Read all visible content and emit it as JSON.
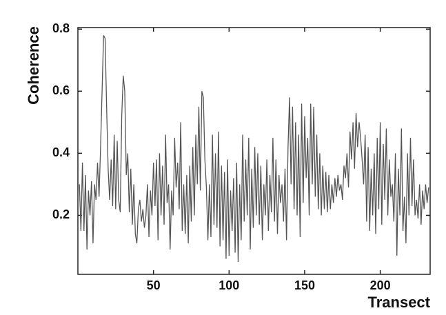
{
  "chart_data": {
    "type": "line",
    "x_label": "Transect",
    "y_label": "Coherence",
    "xlim": [
      0,
      233
    ],
    "ylim": [
      0.01,
      0.805
    ],
    "xticks": [
      50,
      100,
      150,
      200
    ],
    "yticks": [
      0.2,
      0.4,
      0.6,
      0.8
    ],
    "color": "#555555",
    "x": [
      1,
      2,
      3,
      4,
      5,
      6,
      7,
      8,
      9,
      10,
      11,
      12,
      13,
      14,
      15,
      16,
      17,
      18,
      19,
      20,
      21,
      22,
      23,
      24,
      25,
      26,
      27,
      28,
      29,
      30,
      31,
      32,
      33,
      34,
      35,
      36,
      37,
      38,
      39,
      40,
      41,
      42,
      43,
      44,
      45,
      46,
      47,
      48,
      49,
      50,
      51,
      52,
      53,
      54,
      55,
      56,
      57,
      58,
      59,
      60,
      61,
      62,
      63,
      64,
      65,
      66,
      67,
      68,
      69,
      70,
      71,
      72,
      73,
      74,
      75,
      76,
      77,
      78,
      79,
      80,
      81,
      82,
      83,
      84,
      85,
      86,
      87,
      88,
      89,
      90,
      91,
      92,
      93,
      94,
      95,
      96,
      97,
      98,
      99,
      100,
      101,
      102,
      103,
      104,
      105,
      106,
      107,
      108,
      109,
      110,
      111,
      112,
      113,
      114,
      115,
      116,
      117,
      118,
      119,
      120,
      121,
      122,
      123,
      124,
      125,
      126,
      127,
      128,
      129,
      130,
      131,
      132,
      133,
      134,
      135,
      136,
      137,
      138,
      139,
      140,
      141,
      142,
      143,
      144,
      145,
      146,
      147,
      148,
      149,
      150,
      151,
      152,
      153,
      154,
      155,
      156,
      157,
      158,
      159,
      160,
      161,
      162,
      163,
      164,
      165,
      166,
      167,
      168,
      169,
      170,
      171,
      172,
      173,
      174,
      175,
      176,
      177,
      178,
      179,
      180,
      181,
      182,
      183,
      184,
      185,
      186,
      187,
      188,
      189,
      190,
      191,
      192,
      193,
      194,
      195,
      196,
      197,
      198,
      199,
      200,
      201,
      202,
      203,
      204,
      205,
      206,
      207,
      208,
      209,
      210,
      211,
      212,
      213,
      214,
      215,
      216,
      217,
      218,
      219,
      220,
      221,
      222,
      223,
      224,
      225,
      226,
      227,
      228,
      229,
      230,
      231,
      232
    ],
    "values": [
      0.3,
      0.15,
      0.37,
      0.15,
      0.33,
      0.09,
      0.28,
      0.2,
      0.31,
      0.11,
      0.3,
      0.25,
      0.37,
      0.26,
      0.42,
      0.6,
      0.78,
      0.77,
      0.55,
      0.35,
      0.25,
      0.38,
      0.23,
      0.46,
      0.22,
      0.44,
      0.25,
      0.21,
      0.52,
      0.65,
      0.6,
      0.33,
      0.4,
      0.21,
      0.35,
      0.17,
      0.3,
      0.14,
      0.11,
      0.22,
      0.25,
      0.18,
      0.22,
      0.16,
      0.2,
      0.3,
      0.13,
      0.28,
      0.2,
      0.37,
      0.23,
      0.38,
      0.12,
      0.4,
      0.2,
      0.36,
      0.17,
      0.46,
      0.24,
      0.3,
      0.09,
      0.28,
      0.2,
      0.45,
      0.29,
      0.37,
      0.22,
      0.5,
      0.15,
      0.3,
      0.14,
      0.33,
      0.11,
      0.36,
      0.18,
      0.42,
      0.2,
      0.46,
      0.3,
      0.55,
      0.28,
      0.6,
      0.58,
      0.38,
      0.29,
      0.12,
      0.3,
      0.13,
      0.46,
      0.17,
      0.4,
      0.16,
      0.47,
      0.1,
      0.36,
      0.12,
      0.34,
      0.06,
      0.38,
      0.07,
      0.28,
      0.15,
      0.32,
      0.08,
      0.37,
      0.05,
      0.3,
      0.12,
      0.46,
      0.18,
      0.38,
      0.2,
      0.45,
      0.09,
      0.35,
      0.16,
      0.42,
      0.2,
      0.4,
      0.17,
      0.36,
      0.12,
      0.3,
      0.2,
      0.38,
      0.15,
      0.33,
      0.21,
      0.45,
      0.18,
      0.38,
      0.14,
      0.33,
      0.24,
      0.3,
      0.18,
      0.35,
      0.12,
      0.42,
      0.58,
      0.3,
      0.55,
      0.22,
      0.5,
      0.2,
      0.46,
      0.13,
      0.56,
      0.24,
      0.52,
      0.32,
      0.45,
      0.2,
      0.56,
      0.3,
      0.55,
      0.26,
      0.46,
      0.22,
      0.4,
      0.2,
      0.36,
      0.22,
      0.34,
      0.21,
      0.33,
      0.22,
      0.3,
      0.24,
      0.32,
      0.26,
      0.33,
      0.28,
      0.3,
      0.25,
      0.36,
      0.32,
      0.4,
      0.29,
      0.47,
      0.38,
      0.5,
      0.35,
      0.53,
      0.42,
      0.5,
      0.45,
      0.38,
      0.3,
      0.46,
      0.18,
      0.42,
      0.15,
      0.35,
      0.2,
      0.4,
      0.14,
      0.45,
      0.22,
      0.5,
      0.17,
      0.43,
      0.25,
      0.48,
      0.2,
      0.38,
      0.26,
      0.3,
      0.18,
      0.4,
      0.07,
      0.35,
      0.2,
      0.48,
      0.15,
      0.26,
      0.11,
      0.4,
      0.2,
      0.45,
      0.23,
      0.38,
      0.2,
      0.25,
      0.19,
      0.3,
      0.17,
      0.28,
      0.22,
      0.3,
      0.24,
      0.29
    ]
  }
}
